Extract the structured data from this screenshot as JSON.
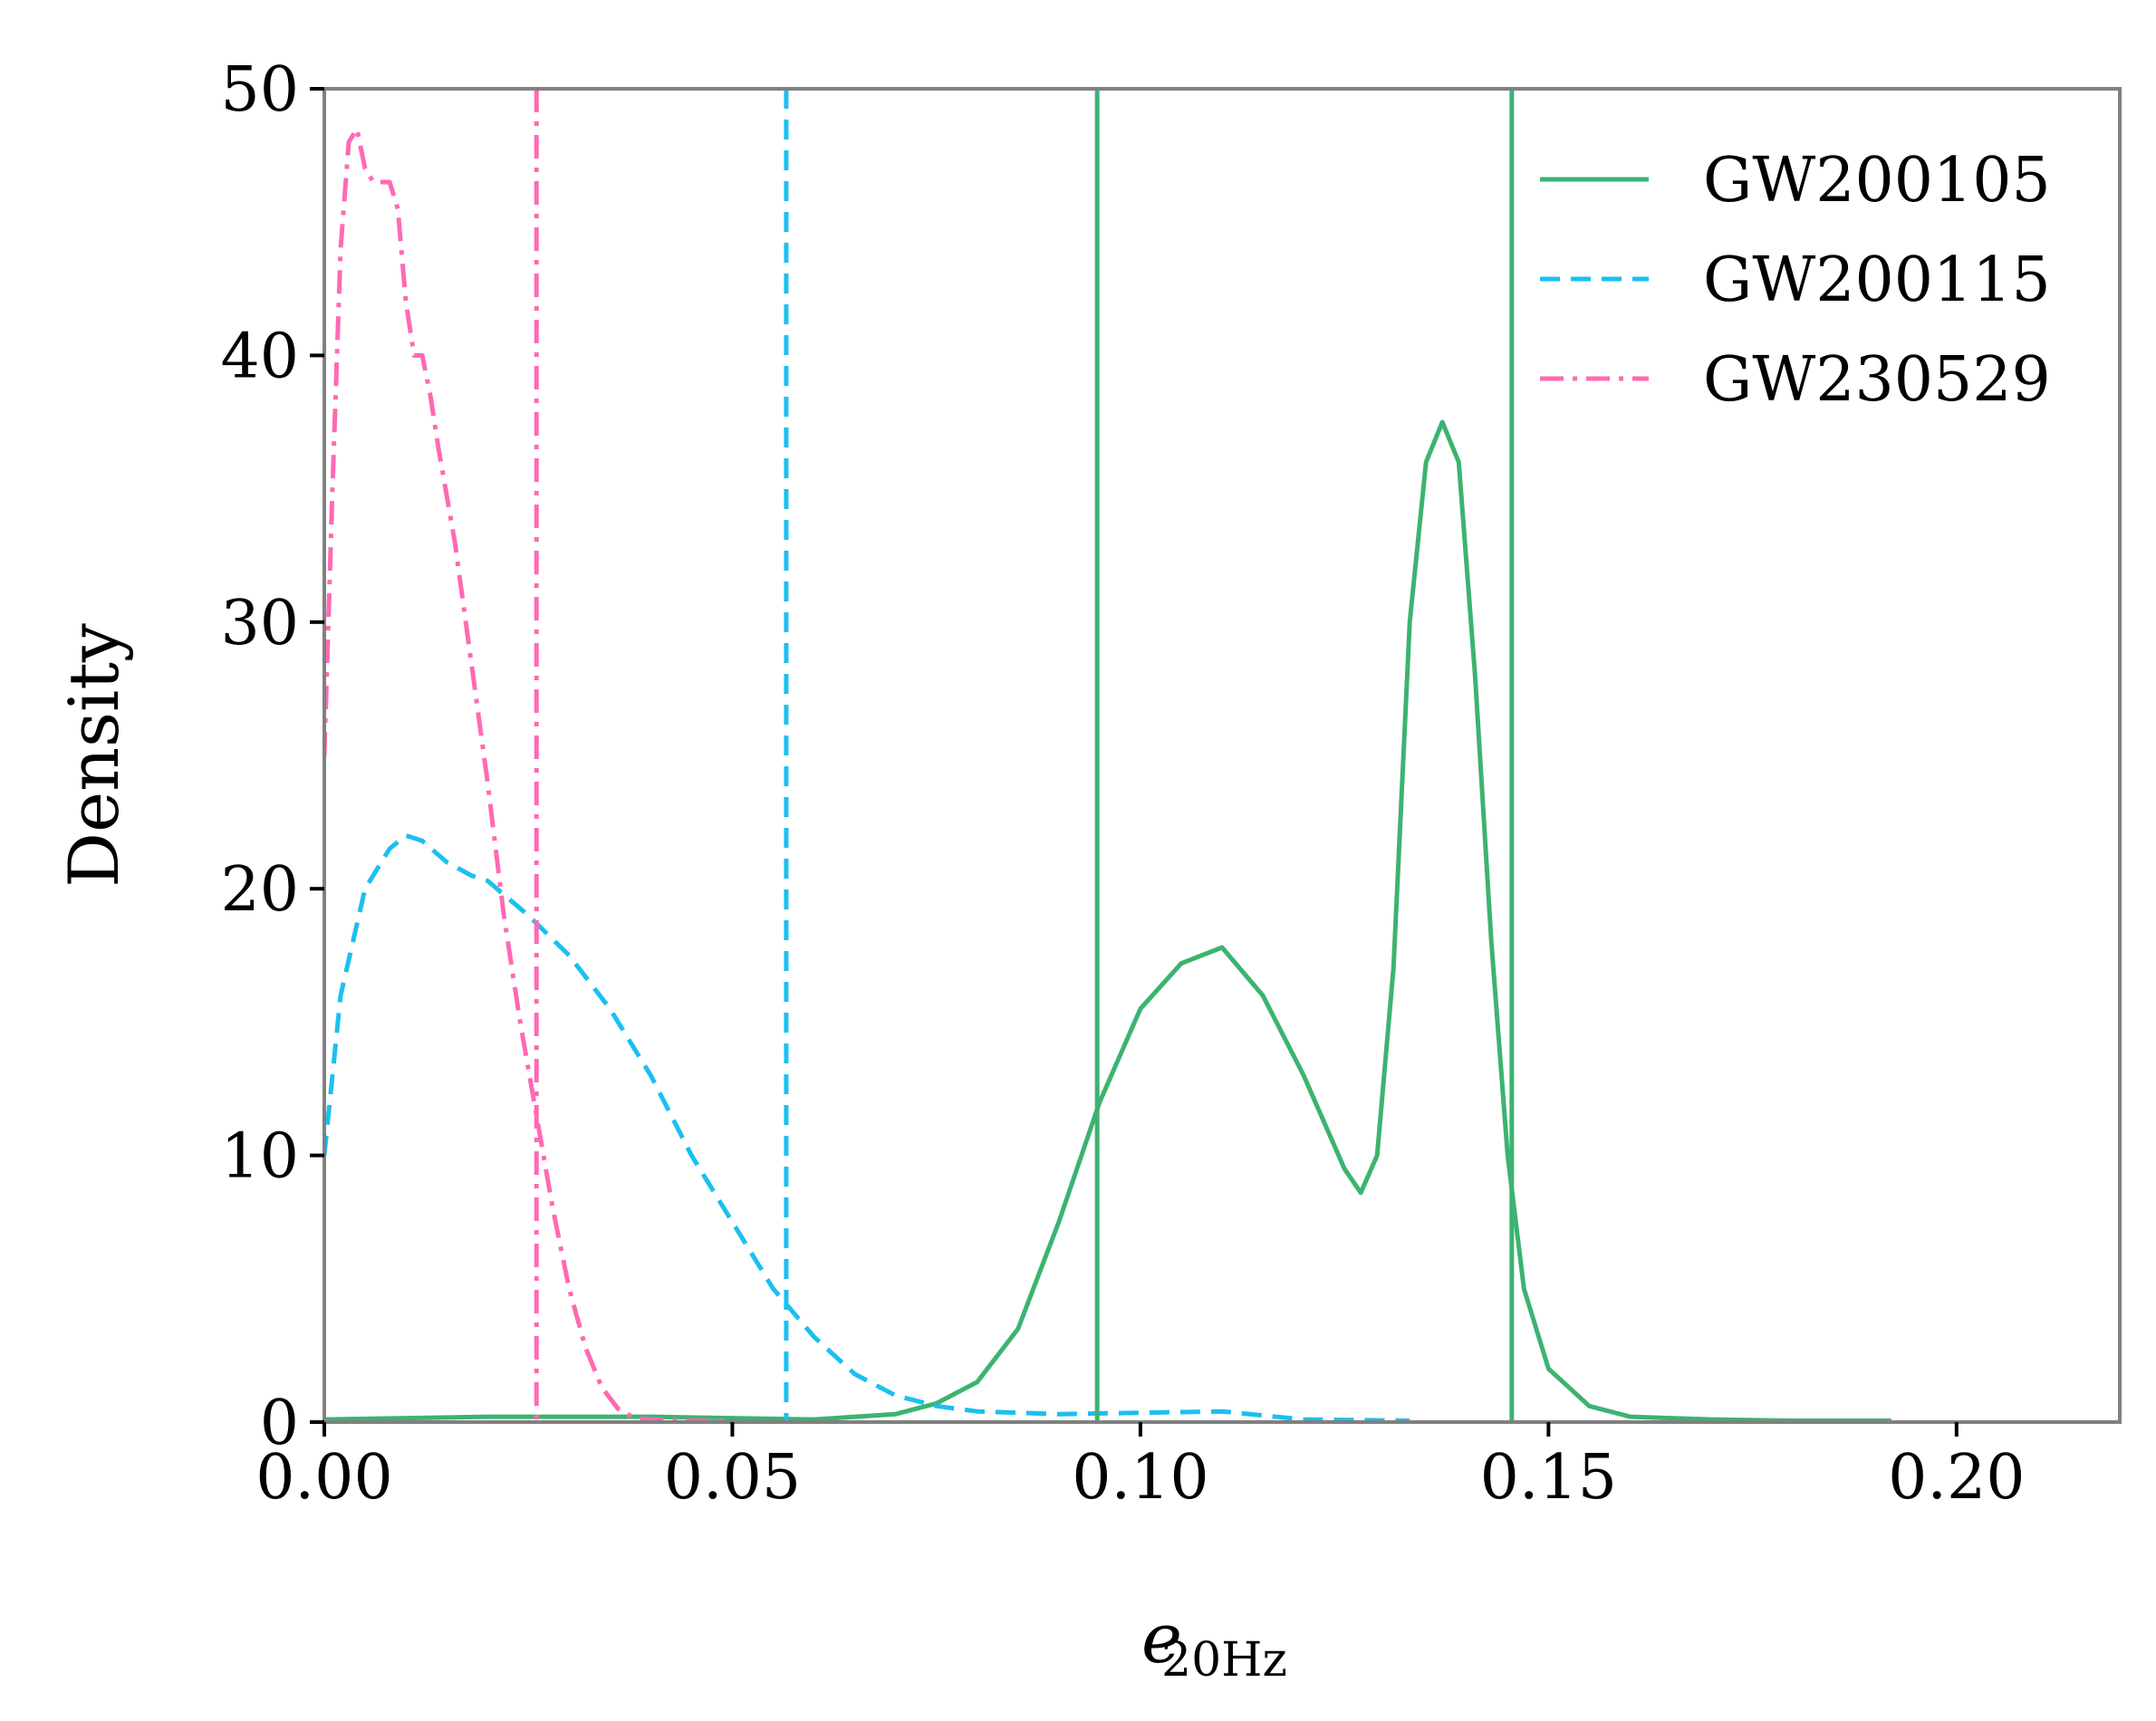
{
  "chart_data": {
    "type": "line",
    "title": "",
    "xlabel": "e",
    "xlabel_sub": "20Hz",
    "ylabel": "Density",
    "xlim": [
      0,
      0.22
    ],
    "ylim": [
      0,
      50
    ],
    "xticks": [
      0.0,
      0.05,
      0.1,
      0.15,
      0.2
    ],
    "xtick_labels": [
      "0.00",
      "0.05",
      "0.10",
      "0.15",
      "0.20"
    ],
    "yticks": [
      0,
      10,
      20,
      30,
      40,
      50
    ],
    "ytick_labels": [
      "0",
      "10",
      "20",
      "30",
      "40",
      "50"
    ],
    "grid": false,
    "legend_position": "top-right",
    "series": [
      {
        "name": "GW200105",
        "color": "#3cb371",
        "style": "solid",
        "x": [
          0.0,
          0.02,
          0.04,
          0.06,
          0.07,
          0.075,
          0.08,
          0.085,
          0.09,
          0.095,
          0.1,
          0.105,
          0.11,
          0.115,
          0.12,
          0.125,
          0.127,
          0.129,
          0.131,
          0.133,
          0.135,
          0.137,
          0.139,
          0.141,
          0.143,
          0.145,
          0.147,
          0.15,
          0.155,
          0.16,
          0.17,
          0.18,
          0.192
        ],
        "y": [
          0.1,
          0.2,
          0.2,
          0.1,
          0.3,
          0.7,
          1.5,
          3.5,
          7.5,
          12.0,
          15.5,
          17.2,
          17.8,
          16.0,
          13.0,
          9.5,
          8.6,
          10.0,
          17.0,
          30.0,
          36.0,
          37.5,
          36.0,
          28.0,
          18.0,
          10.0,
          5.0,
          2.0,
          0.6,
          0.2,
          0.1,
          0.05,
          0.05
        ]
      },
      {
        "name": "GW200115",
        "color": "#1ac0f0",
        "style": "dashed",
        "x": [
          0.0,
          0.002,
          0.005,
          0.008,
          0.01,
          0.012,
          0.015,
          0.018,
          0.02,
          0.025,
          0.03,
          0.035,
          0.04,
          0.045,
          0.05,
          0.055,
          0.06,
          0.065,
          0.07,
          0.075,
          0.08,
          0.09,
          0.1,
          0.11,
          0.12,
          0.133
        ],
        "y": [
          10.0,
          16.0,
          20.0,
          21.5,
          22.0,
          21.8,
          21.0,
          20.5,
          20.3,
          19.0,
          17.5,
          15.5,
          13.0,
          10.0,
          7.5,
          5.0,
          3.2,
          1.8,
          1.0,
          0.6,
          0.4,
          0.3,
          0.35,
          0.4,
          0.1,
          0.05
        ]
      },
      {
        "name": "GW230529",
        "color": "#ff69b4",
        "style": "dashdot",
        "x": [
          0.0,
          0.001,
          0.002,
          0.003,
          0.004,
          0.005,
          0.006,
          0.008,
          0.009,
          0.01,
          0.011,
          0.012,
          0.013,
          0.014,
          0.016,
          0.018,
          0.02,
          0.022,
          0.024,
          0.026,
          0.028,
          0.03,
          0.032,
          0.034,
          0.036,
          0.038,
          0.04,
          0.045,
          0.05
        ],
        "y": [
          25.0,
          35.0,
          44.0,
          48.0,
          48.5,
          47.0,
          46.5,
          46.5,
          45.5,
          42.0,
          40.0,
          40.0,
          38.5,
          36.5,
          33.0,
          28.5,
          24.0,
          19.0,
          15.0,
          11.5,
          8.0,
          5.0,
          2.8,
          1.3,
          0.5,
          0.15,
          0.1,
          0.05,
          0.05
        ]
      }
    ],
    "vertical_lines": [
      {
        "series": "GW200105",
        "x": 0.0947,
        "color": "#3cb371",
        "style": "solid"
      },
      {
        "series": "GW200105",
        "x": 0.1455,
        "color": "#3cb371",
        "style": "solid"
      },
      {
        "series": "GW200115",
        "x": 0.0566,
        "color": "#1ac0f0",
        "style": "dashed"
      },
      {
        "series": "GW230529",
        "x": 0.026,
        "color": "#ff69b4",
        "style": "dashdot"
      }
    ]
  }
}
